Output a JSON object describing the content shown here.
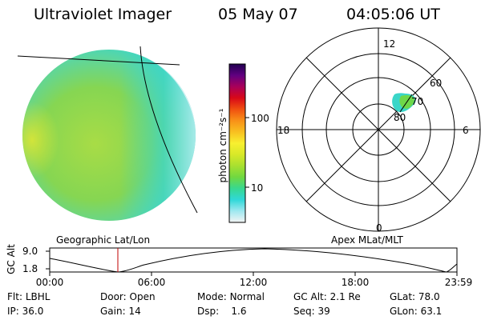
{
  "header": {
    "instrument": "Ultraviolet Imager",
    "date": "05 May 07",
    "time": "04:05:06 UT"
  },
  "geo_panel": {
    "caption": "Geographic Lat/Lon"
  },
  "colorbar": {
    "label": "photon cm⁻²s⁻¹",
    "ticks": [
      "100",
      "10"
    ],
    "scale": "log",
    "colors_bottom_to_top": [
      "#f4f4f4",
      "#a0e8f0",
      "#30d8d8",
      "#38d890",
      "#70d840",
      "#a8e030",
      "#d8e828",
      "#f8f030",
      "#f8c020",
      "#f89018",
      "#f05010",
      "#d80818",
      "#a8005a",
      "#600080",
      "#200050"
    ]
  },
  "polar_panel": {
    "caption": "Apex MLat/MLT",
    "mlt_labels": {
      "top": "12",
      "bottom": "0",
      "left": "18",
      "right": "6"
    },
    "lat_labels": [
      "60",
      "70",
      "80"
    ]
  },
  "altitude_plot": {
    "ylabel": "GC Alt",
    "yticks": [
      "9.0",
      "1.8"
    ],
    "xticks": [
      "00:00",
      "06:00",
      "12:00",
      "18:00",
      "23:59"
    ],
    "current_time_marker_hours": 4.08
  },
  "status": {
    "filter_label": "Flt:",
    "filter_value": "LBHL",
    "door_label": "Door:",
    "door_value": "Open",
    "mode_label": "Mode:",
    "mode_value": "Normal",
    "gcalt_label": "GC Alt:",
    "gcalt_value": "2.1 Re",
    "glat_label": "GLat:",
    "glat_value": "78.0",
    "ip_label": "IP:",
    "ip_value": "36.0",
    "gain_label": "Gain:",
    "gain_value": "14",
    "dsp_label": "Dsp:",
    "dsp_value": "1.6",
    "seq_label": "Seq:",
    "seq_value": "39",
    "glon_label": "GLon:",
    "glon_value": "63.1"
  },
  "colors": {
    "disk_main": "#8ed851",
    "disk_dim": "#3fd6c4",
    "disk_edge": "#e4f6f8",
    "disk_bright": "#c8e43a",
    "oval_green": "#6ed84a",
    "oval_cyan": "#3ad6c8",
    "marker_red": "#c00000"
  }
}
